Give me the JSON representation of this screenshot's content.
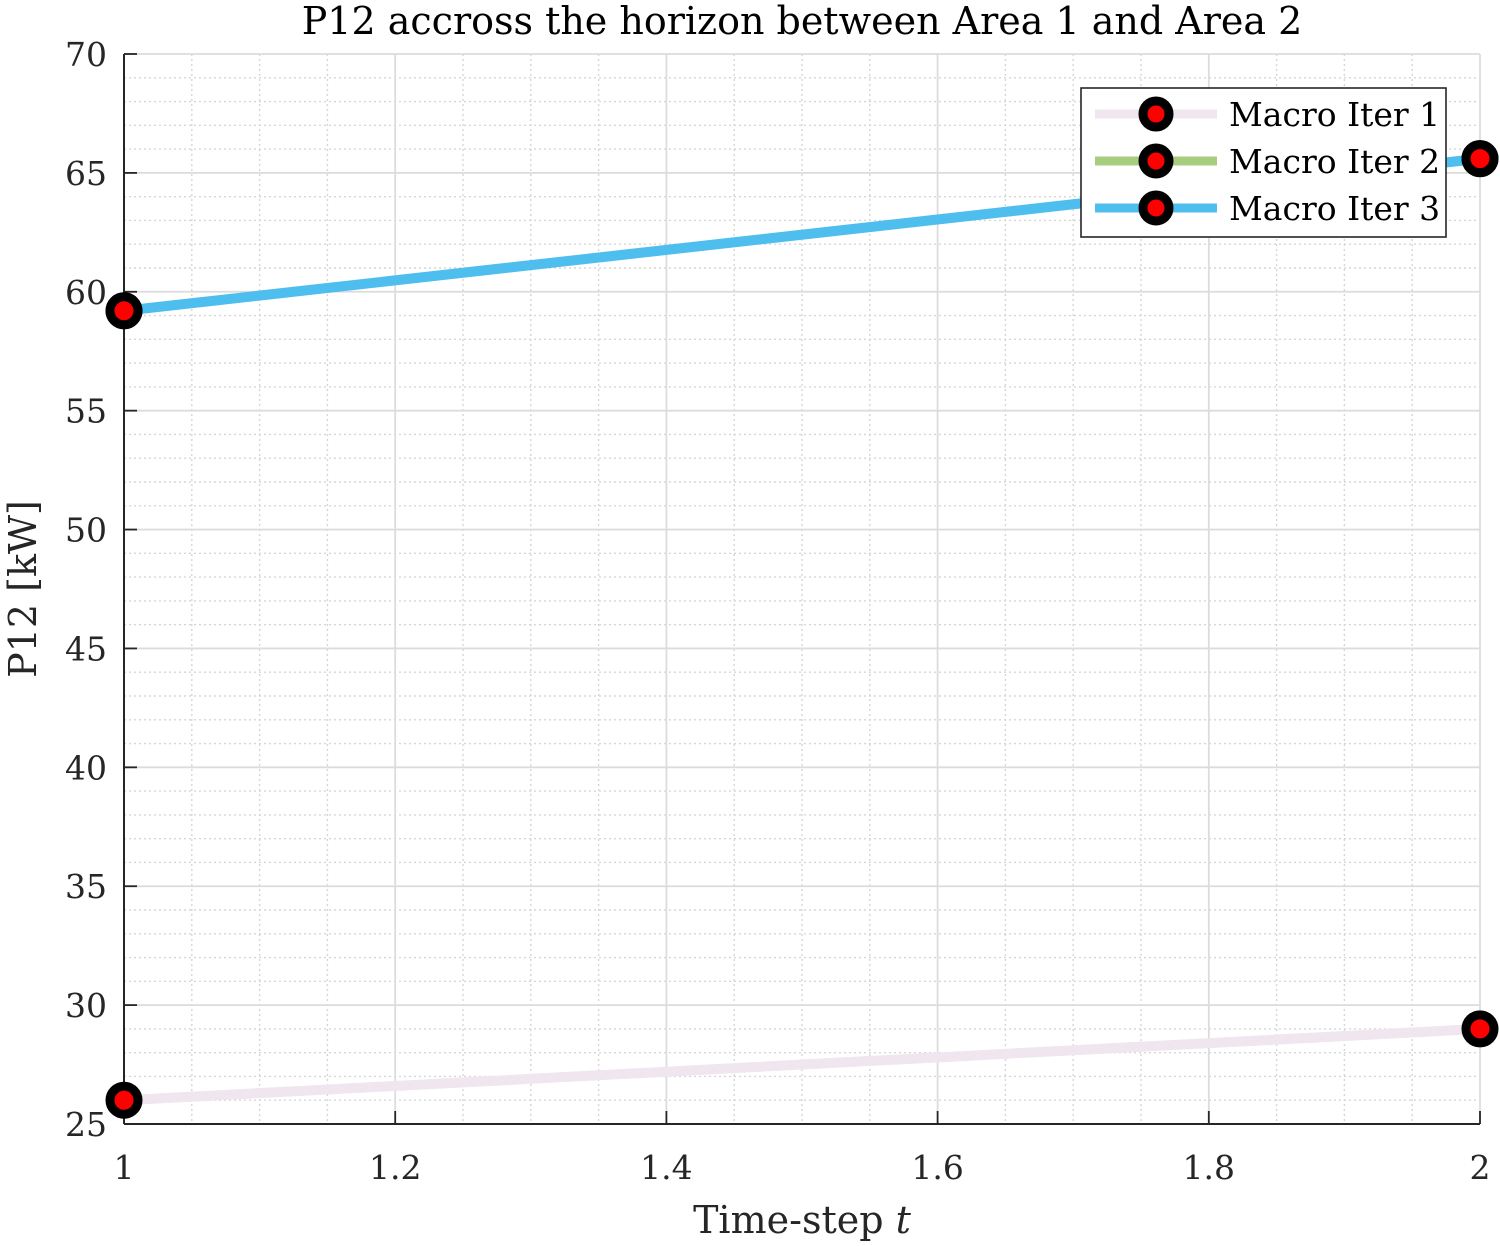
{
  "chart_data": {
    "type": "line",
    "title": "P12 accross the horizon between Area 1 and Area 2",
    "xlabel": "Time-step",
    "xlabel_var": "t",
    "ylabel": "P12 [kW]",
    "xlim": [
      1,
      2
    ],
    "ylim": [
      25,
      70
    ],
    "xticks": [
      1,
      1.2,
      1.4,
      1.6,
      1.8,
      2
    ],
    "xtick_labels": [
      "1",
      "1.2",
      "1.4",
      "1.6",
      "1.8",
      "2"
    ],
    "yticks": [
      25,
      30,
      35,
      40,
      45,
      50,
      55,
      60,
      65,
      70
    ],
    "ytick_labels": [
      "25",
      "30",
      "35",
      "40",
      "45",
      "50",
      "55",
      "60",
      "65",
      "70"
    ],
    "x_minor_step": 0.05,
    "y_minor_step": 1,
    "grid": true,
    "minor_grid": true,
    "legend_position": "top-right",
    "x": [
      1,
      2
    ],
    "series": [
      {
        "name": "Macro Iter 1",
        "values": [
          26.0,
          29.0
        ],
        "color": "#EFE6EF"
      },
      {
        "name": "Macro Iter 2",
        "values": [
          59.2,
          65.6
        ],
        "color": "#A9CD7F"
      },
      {
        "name": "Macro Iter 3",
        "values": [
          59.2,
          65.6
        ],
        "color": "#4DBEEE"
      }
    ],
    "marker_outer_color": "#000000",
    "marker_inner_color": "#FF0000"
  }
}
